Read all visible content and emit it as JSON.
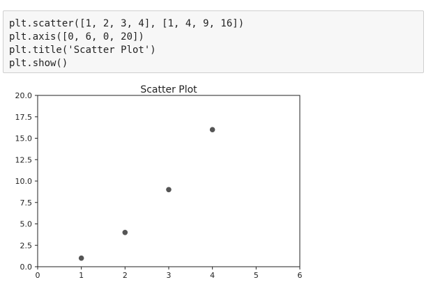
{
  "code_cell": {
    "lines": [
      "plt.scatter([1, 2, 3, 4], [1, 4, 9, 16])",
      "plt.axis([0, 6, 0, 20])",
      "plt.title('Scatter Plot')",
      "plt.show()"
    ]
  },
  "chart_data": {
    "type": "scatter",
    "title": "Scatter Plot",
    "xlabel": "",
    "ylabel": "",
    "xlim": [
      0,
      6
    ],
    "ylim": [
      0,
      20
    ],
    "xticks": [
      0,
      1,
      2,
      3,
      4,
      5,
      6
    ],
    "xtick_labels": [
      "0",
      "1",
      "2",
      "3",
      "4",
      "5",
      "6"
    ],
    "yticks": [
      0,
      2.5,
      5,
      7.5,
      10,
      12.5,
      15,
      17.5,
      20
    ],
    "ytick_labels": [
      "0.0",
      "2.5",
      "5.0",
      "7.5",
      "10.0",
      "12.5",
      "15.0",
      "17.5",
      "20.0"
    ],
    "grid": false,
    "series": [
      {
        "x": [
          1,
          2,
          3,
          4
        ],
        "y": [
          1,
          4,
          9,
          16
        ],
        "color": "#555555"
      }
    ]
  }
}
